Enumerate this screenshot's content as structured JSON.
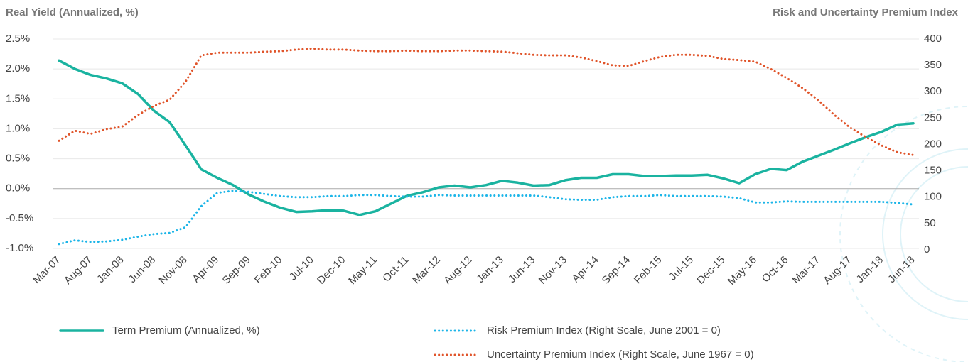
{
  "chart_data": {
    "type": "line",
    "y_label": "Real Yield (Annualized, %)",
    "y2_label": "Risk and Uncertainty Premium Index",
    "categories": [
      "Mar-07",
      null,
      "Aug-07",
      null,
      "Jan-08",
      null,
      "Jun-08",
      null,
      "Nov-08",
      null,
      "Apr-09",
      null,
      "Sep-09",
      null,
      "Feb-10",
      null,
      "Jul-10",
      null,
      "Dec-10",
      null,
      "May-11",
      null,
      "Oct-11",
      null,
      "Mar-12",
      null,
      "Aug-12",
      null,
      "Jan-13",
      null,
      "Jun-13",
      null,
      "Nov-13",
      null,
      "Apr-14",
      null,
      "Sep-14",
      null,
      "Feb-15",
      null,
      "Jul-15",
      null,
      "Dec-15",
      null,
      "May-16",
      null,
      "Oct-16",
      null,
      "Mar-17",
      null,
      "Aug-17",
      null,
      "Jan-18",
      null,
      "Jun-18"
    ],
    "series": [
      {
        "name": "Term Premium (Annualized, %)",
        "color": "#1ab3a0",
        "style": "solid",
        "values": [
          2.14,
          2.0,
          1.9,
          1.84,
          1.76,
          1.58,
          1.3,
          1.11,
          0.72,
          0.32,
          0.18,
          0.06,
          -0.1,
          -0.22,
          -0.32,
          -0.39,
          -0.38,
          -0.36,
          -0.37,
          -0.44,
          -0.38,
          -0.25,
          -0.12,
          -0.06,
          0.02,
          0.05,
          0.02,
          0.06,
          0.13,
          0.1,
          0.05,
          0.06,
          0.14,
          0.18,
          0.18,
          0.24,
          0.24,
          0.21,
          0.21,
          0.22,
          0.22,
          0.23,
          0.17,
          0.09,
          0.24,
          0.33,
          0.31,
          0.45,
          0.55,
          0.65,
          0.76,
          0.86,
          0.95,
          1.07,
          1.09
        ]
      },
      {
        "name": "Risk Premium Index (Right Scale, June 2001 = 0)",
        "color": "#1cb5e8",
        "style": "dotted",
        "axis": "y2",
        "values": [
          11,
          18,
          15,
          16,
          19,
          25,
          30,
          32,
          43,
          83,
          108,
          112,
          110,
          106,
          102,
          100,
          100,
          102,
          102,
          104,
          104,
          102,
          101,
          101,
          104,
          103,
          103,
          103,
          103,
          103,
          103,
          100,
          96,
          95,
          95,
          100,
          102,
          102,
          104,
          102,
          102,
          102,
          101,
          98,
          90,
          90,
          92,
          91,
          91,
          91,
          91,
          91,
          91,
          89,
          86
        ]
      },
      {
        "name": "Uncertainty Premium Index (Right Scale, June 1967 = 0)",
        "color": "#e0542a",
        "style": "dotted",
        "axis": "y2",
        "values": [
          207,
          226,
          220,
          229,
          234,
          256,
          273,
          285,
          319,
          369,
          374,
          374,
          374,
          376,
          377,
          380,
          382,
          380,
          380,
          378,
          377,
          377,
          378,
          377,
          377,
          378,
          378,
          377,
          376,
          373,
          370,
          369,
          369,
          365,
          358,
          350,
          349,
          358,
          366,
          370,
          370,
          368,
          362,
          360,
          357,
          343,
          326,
          307,
          284,
          256,
          232,
          214,
          198,
          185,
          180
        ]
      }
    ],
    "ylim": [
      -1.0,
      2.5
    ],
    "yticks": [
      {
        "value": -1.0,
        "label": "-1.0%"
      },
      {
        "value": -0.5,
        "label": "-0.5%"
      },
      {
        "value": 0.0,
        "label": "0.0%"
      },
      {
        "value": 0.5,
        "label": "0.5%"
      },
      {
        "value": 1.0,
        "label": "1.0%"
      },
      {
        "value": 1.5,
        "label": "1.5%"
      },
      {
        "value": 2.0,
        "label": "2.0%"
      },
      {
        "value": 2.5,
        "label": "2.5%"
      }
    ],
    "y2lim": [
      0,
      400
    ],
    "y2ticks": [
      0,
      50,
      100,
      150,
      200,
      250,
      300,
      350,
      400
    ],
    "grid": true
  }
}
